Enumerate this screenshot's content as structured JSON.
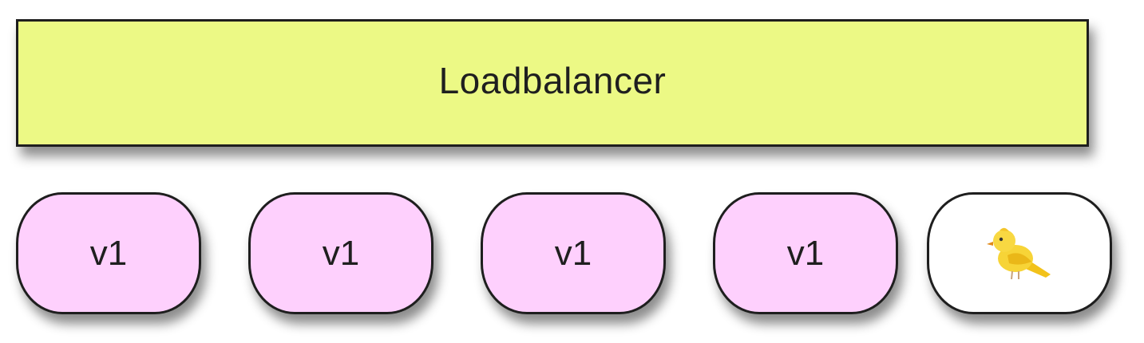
{
  "loadbalancer": {
    "label": "Loadbalancer",
    "color": "#ecf985"
  },
  "nodes": [
    {
      "label": "v1",
      "color": "#fed0fd"
    },
    {
      "label": "v1",
      "color": "#fed0fd"
    },
    {
      "label": "v1",
      "color": "#fed0fd"
    },
    {
      "label": "v1",
      "color": "#fed0fd"
    },
    {
      "label": "",
      "icon": "canary-bird-icon",
      "color": "#ffffff"
    }
  ]
}
